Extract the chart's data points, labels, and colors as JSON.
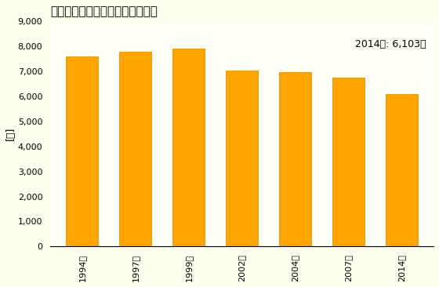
{
  "title": "機械器具小売業の従業者数の推移",
  "ylabel": "[人]",
  "annotation": "2014年: 6,103人",
  "categories": [
    "1994年",
    "1997年",
    "1999年",
    "2002年",
    "2004年",
    "2007年",
    "2014年"
  ],
  "values": [
    7600,
    7800,
    7900,
    7020,
    6980,
    6760,
    6103
  ],
  "bar_color": "#FFA500",
  "bar_edge_color": "#CC8400",
  "ylim": [
    0,
    9000
  ],
  "yticks": [
    0,
    1000,
    2000,
    3000,
    4000,
    5000,
    6000,
    7000,
    8000,
    9000
  ],
  "background_color": "#FFFFF0",
  "plot_bg_color": "#FEFEF5",
  "title_fontsize": 11,
  "label_fontsize": 9,
  "tick_fontsize": 8,
  "annotation_fontsize": 9
}
